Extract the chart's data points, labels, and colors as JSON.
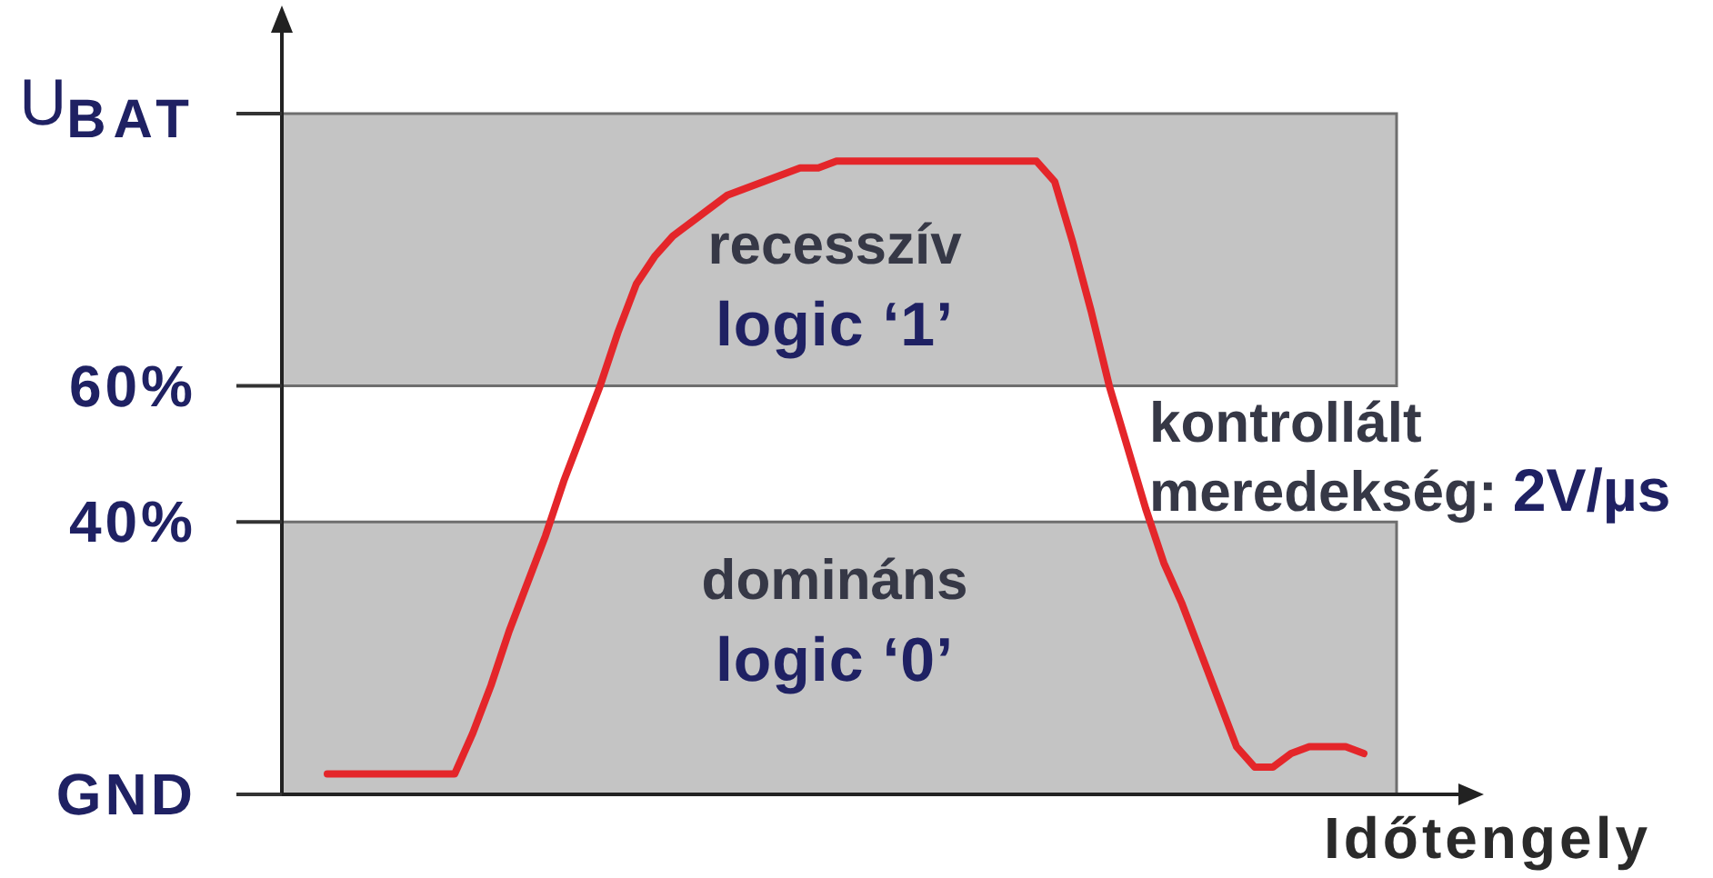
{
  "chart_data": {
    "type": "line",
    "xlabel": "Időtengely",
    "categories": [
      null,
      null,
      null,
      null,
      null,
      null,
      null,
      null,
      null,
      null,
      null,
      null,
      null,
      null,
      null,
      null,
      null,
      null,
      null,
      null,
      null,
      null,
      null,
      null,
      null,
      null,
      null,
      null,
      null,
      null,
      null,
      null,
      null,
      null,
      null,
      null,
      null,
      null,
      null,
      null,
      null,
      null,
      null,
      null,
      null,
      null,
      null,
      null,
      null,
      null,
      null,
      null,
      null,
      null,
      null,
      null,
      null,
      null
    ],
    "series": [
      {
        "color": "#e4262a",
        "values": [
          3,
          3,
          3,
          3,
          3,
          3,
          3,
          3,
          9,
          16,
          24,
          31,
          38,
          46,
          53,
          60,
          68,
          75,
          79,
          82,
          84,
          86,
          88,
          89,
          90,
          91,
          92,
          92,
          93,
          93,
          93,
          93,
          93,
          93,
          93,
          93,
          93,
          93,
          93,
          93,
          90,
          81,
          71,
          60,
          51,
          42,
          34,
          28,
          21,
          14,
          7,
          4,
          4,
          6,
          7,
          7,
          7,
          6
        ]
      }
    ],
    "ylim": [
      0,
      114
    ],
    "yticks": [
      {
        "value": 0,
        "label": "GND"
      },
      {
        "value": 40,
        "label": "40%"
      },
      {
        "value": 60,
        "label": "60%"
      },
      {
        "value": 100,
        "label": "U$_{BAT}$"
      }
    ],
    "tick_labels": "y",
    "marker": "none",
    "line_style": "solid",
    "bands": [
      {
        "axis": "y",
        "from": 60,
        "to": 100,
        "label": "recesszív\nlogic ‘1’",
        "color": "#c4c4c4"
      },
      {
        "axis": "y",
        "from": 0,
        "to": 40,
        "label": "domináns\nlogic ‘0’",
        "color": "#c4c4c4"
      }
    ],
    "annotations": [
      "kontrollált\nmeredekség: 2V/µs"
    ]
  }
}
